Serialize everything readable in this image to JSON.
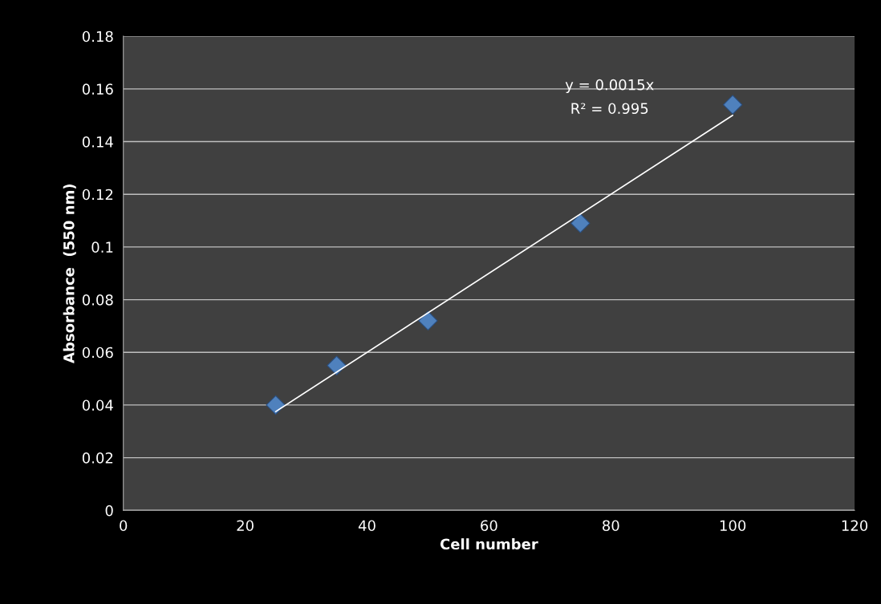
{
  "chart_data": {
    "type": "scatter",
    "xlabel": "Cell number",
    "ylabel": "Absorbance  (550 nm)",
    "x": [
      25,
      35,
      50,
      75,
      100
    ],
    "series": [
      {
        "color": "#4f81bd",
        "marker": "diamond",
        "values": [
          0.04,
          0.055,
          0.072,
          0.109,
          0.154
        ]
      },
      {
        "type": "line",
        "color": "#ffffff",
        "marker": "none",
        "x": [
          25,
          100
        ],
        "values": [
          0.0375,
          0.15
        ]
      }
    ],
    "annotations": [
      "y = 0.0015x",
      "R² = 0.995"
    ],
    "xlim": [
      0,
      120
    ],
    "xticks": [
      0,
      20,
      40,
      60,
      80,
      100,
      120
    ],
    "ylim": [
      0,
      0.18
    ],
    "yticks": [
      0,
      0.02,
      0.04,
      0.06,
      0.08,
      0.1,
      0.12,
      0.14,
      0.16,
      0.18
    ],
    "grid": "y",
    "legend": false
  }
}
